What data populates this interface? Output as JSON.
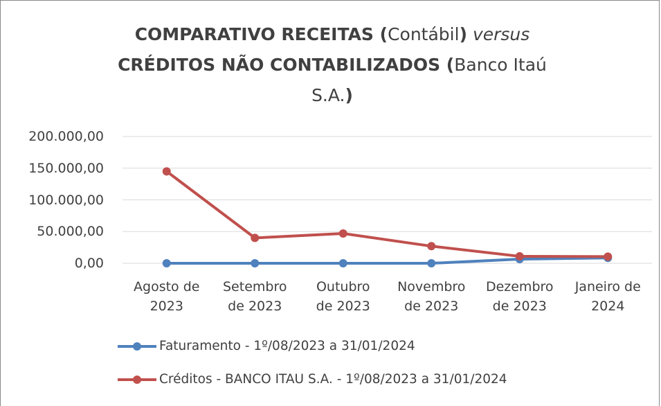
{
  "chart_data": {
    "type": "line",
    "title": [
      "COMPARATIVO RECEITAS (",
      "Contábil",
      ")",
      "versus",
      "CRÉDITOS NÃO CONTABILIZADOS (",
      "Banco Itaú",
      "S.A.",
      ")"
    ],
    "categories": [
      "Agosto de\n2023",
      "Setembro\nde 2023",
      "Outubro\nde 2023",
      "Novembro\nde 2023",
      "Dezembro\nde 2023",
      "Janeiro de\n2024"
    ],
    "series": [
      {
        "name": "Faturamento - 1º/08/2023 a 31/01/2024",
        "color": "#4f81bd",
        "values": [
          0,
          0,
          0,
          0,
          6500,
          8500
        ]
      },
      {
        "name": "Créditos - BANCO ITAU S.A. - 1º/08/2023 a 31/01/2024",
        "color": "#c0504d",
        "values": [
          145000,
          40000,
          47000,
          27000,
          11000,
          10500
        ]
      }
    ],
    "ylim": [
      0,
      200000
    ],
    "yticks": [
      {
        "value": 0,
        "label": "0,00"
      },
      {
        "value": 50000,
        "label": "50.000,00"
      },
      {
        "value": 100000,
        "label": "100.000,00"
      },
      {
        "value": 150000,
        "label": "150.000,00"
      },
      {
        "value": 200000,
        "label": "200.000,00"
      }
    ],
    "grid": true
  }
}
